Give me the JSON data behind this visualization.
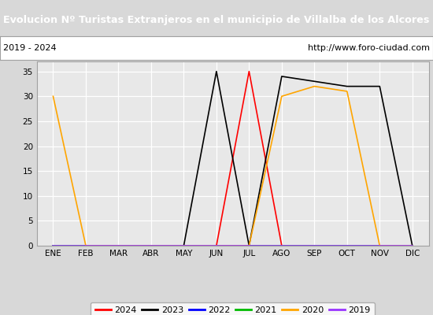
{
  "title": "Evolucion Nº Turistas Extranjeros en el municipio de Villalba de los Alcores",
  "title_bg": "#4472c4",
  "title_color": "white",
  "subtitle_left": "2019 - 2024",
  "subtitle_right": "http://www.foro-ciudad.com",
  "months": [
    "ENE",
    "FEB",
    "MAR",
    "ABR",
    "MAY",
    "JUN",
    "JUL",
    "AGO",
    "SEP",
    "OCT",
    "NOV",
    "DIC"
  ],
  "ylim": [
    0,
    37
  ],
  "yticks": [
    0,
    5,
    10,
    15,
    20,
    25,
    30,
    35
  ],
  "series": {
    "2024": {
      "color": "#ff0000",
      "values": [
        0,
        0,
        0,
        0,
        0,
        0,
        35,
        0,
        0,
        null,
        null,
        null
      ]
    },
    "2023": {
      "color": "#000000",
      "values": [
        0,
        0,
        0,
        0,
        0,
        35,
        0,
        34,
        33,
        32,
        32,
        0
      ]
    },
    "2022": {
      "color": "#0000ff",
      "values": [
        0,
        0,
        0,
        0,
        0,
        0,
        0,
        0,
        0,
        0,
        0,
        0
      ]
    },
    "2021": {
      "color": "#00bb00",
      "values": [
        0,
        0,
        0,
        0,
        0,
        0,
        0,
        0,
        0,
        0,
        0,
        0
      ]
    },
    "2020": {
      "color": "#ffa500",
      "values": [
        30,
        0,
        0,
        0,
        0,
        0,
        0,
        30,
        32,
        31,
        0,
        0
      ]
    },
    "2019": {
      "color": "#9933ff",
      "values": [
        0,
        0,
        0,
        0,
        0,
        0,
        0,
        0,
        0,
        0,
        0,
        0
      ]
    }
  },
  "legend_order": [
    "2024",
    "2023",
    "2022",
    "2021",
    "2020",
    "2019"
  ],
  "fig_bg": "#d8d8d8",
  "plot_bg": "#e8e8e8",
  "grid_color": "#ffffff",
  "border_color": "#a0a0a0"
}
